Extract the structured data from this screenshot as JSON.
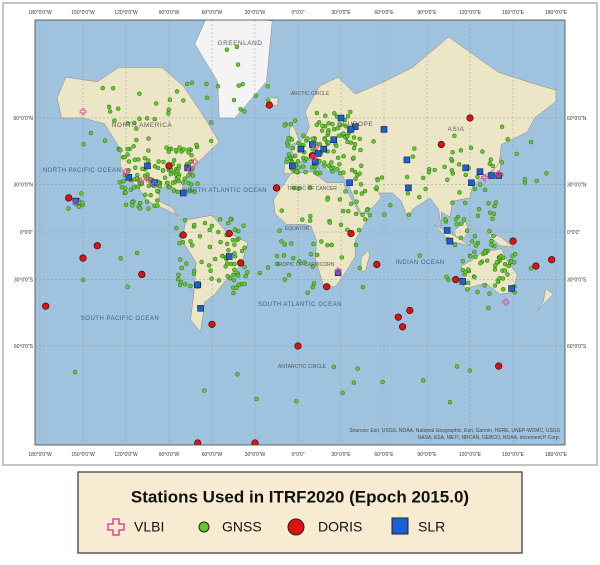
{
  "map": {
    "graticule": {
      "longitudes": [
        "180°0'0\"W",
        "150°0'0\"W",
        "120°0'0\"W",
        "90°0'0\"W",
        "60°0'0\"W",
        "30°0'0\"W",
        "0°0'0\"",
        "30°0'0\"E",
        "60°0'0\"E",
        "90°0'0\"E",
        "120°0'0\"E",
        "150°0'0\"E",
        "180°0'0\"E"
      ],
      "latitudes": [
        "60°0'0\"N",
        "30°0'0\"N",
        "0°0'0\"",
        "30°0'0\"S",
        "60°0'0\"S"
      ]
    },
    "labels": [
      "GREENLAND",
      "ARCTIC CIRCLE",
      "NORTH AMERICA",
      "EUROPE",
      "ASIA",
      "NORTH PACIFIC OCEAN",
      "NORTH ATLANTIC OCEAN",
      "TROPIC OF CANCER",
      "EQUATOR",
      "TROPIC OF CAPRICORN",
      "INDIAN OCEAN",
      "SOUTH ATLANTIC OCEAN",
      "SOUTH PACIFIC OCEAN",
      "ANTARCTIC CIRCLE"
    ],
    "attribution": [
      "Sources: Esri, USGS, NOAA, National Geographic, Esri, Garmin, HERE, UNEP-WCMC, USGS",
      "NASA, ESA, METI, NRCAN, GEBCO, NOAA, increment P Corp."
    ]
  },
  "legend": {
    "title": "Stations Used in ITRF2020 (Epoch 2015.0)",
    "items": [
      "VLBI",
      "GNSS",
      "DORIS",
      "SLR"
    ]
  }
}
